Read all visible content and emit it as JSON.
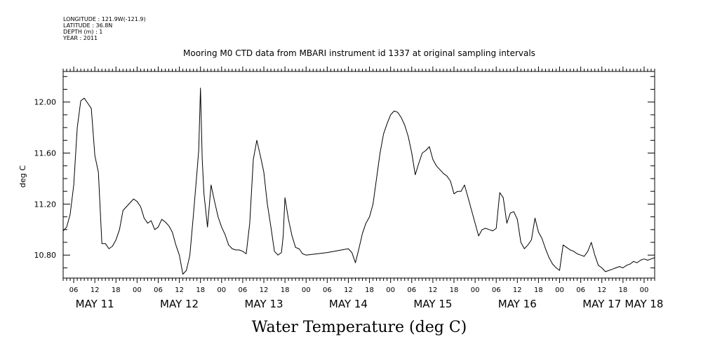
{
  "meta": {
    "longitude": "LONGITUDE : 121.9W(-121.9)",
    "latitude": "LATITUDE : 36.8N",
    "depth": "DEPTH (m) : 1",
    "year": "YEAR : 2011"
  },
  "chart_data": {
    "type": "line",
    "title": "Mooring M0 CTD data from MBARI instrument id 1337 at original sampling intervals",
    "xlabel": "Water Temperature (deg C)",
    "ylabel": "deg C",
    "ylim": [
      10.62,
      12.24
    ],
    "yticks": [
      10.8,
      11.2,
      11.6,
      12.0
    ],
    "ytick_labels": [
      "10.80",
      "11.20",
      "11.60",
      "12.00"
    ],
    "xlim": [
      "2011-05-11T03:00",
      "2011-05-18T03:00"
    ],
    "hour_tick_labels": [
      "06",
      "12",
      "18",
      "00",
      "06",
      "12",
      "18",
      "00",
      "06",
      "12",
      "18",
      "00",
      "06",
      "12",
      "18",
      "00",
      "06",
      "12",
      "18",
      "00",
      "06",
      "12",
      "18",
      "00",
      "06",
      "12",
      "18",
      "00"
    ],
    "day_labels": [
      "MAY 11",
      "MAY 12",
      "MAY 13",
      "MAY 14",
      "MAY 15",
      "MAY 16",
      "MAY 17",
      "MAY 18"
    ],
    "grid": false,
    "series": [
      {
        "values": [
          [
            "2011-05-11T03:00",
            10.99
          ],
          [
            "2011-05-11T04:00",
            11.02
          ],
          [
            "2011-05-11T05:00",
            11.12
          ],
          [
            "2011-05-11T06:00",
            11.35
          ],
          [
            "2011-05-11T07:00",
            11.8
          ],
          [
            "2011-05-11T08:00",
            12.01
          ],
          [
            "2011-05-11T09:00",
            12.03
          ],
          [
            "2011-05-11T10:00",
            11.99
          ],
          [
            "2011-05-11T11:00",
            11.95
          ],
          [
            "2011-05-11T12:00",
            11.58
          ],
          [
            "2011-05-11T13:00",
            11.45
          ],
          [
            "2011-05-11T14:00",
            10.89
          ],
          [
            "2011-05-11T15:00",
            10.89
          ],
          [
            "2011-05-11T16:00",
            10.85
          ],
          [
            "2011-05-11T17:00",
            10.87
          ],
          [
            "2011-05-11T18:00",
            10.92
          ],
          [
            "2011-05-11T19:00",
            11.0
          ],
          [
            "2011-05-11T20:00",
            11.15
          ],
          [
            "2011-05-11T21:00",
            11.18
          ],
          [
            "2011-05-11T22:00",
            11.21
          ],
          [
            "2011-05-11T23:00",
            11.24
          ],
          [
            "2011-05-12T00:00",
            11.22
          ],
          [
            "2011-05-12T01:00",
            11.18
          ],
          [
            "2011-05-12T02:00",
            11.09
          ],
          [
            "2011-05-12T03:00",
            11.05
          ],
          [
            "2011-05-12T04:00",
            11.07
          ],
          [
            "2011-05-12T05:00",
            11.0
          ],
          [
            "2011-05-12T06:00",
            11.02
          ],
          [
            "2011-05-12T07:00",
            11.08
          ],
          [
            "2011-05-12T08:00",
            11.06
          ],
          [
            "2011-05-12T09:00",
            11.03
          ],
          [
            "2011-05-12T10:00",
            10.98
          ],
          [
            "2011-05-12T11:00",
            10.88
          ],
          [
            "2011-05-12T12:00",
            10.8
          ],
          [
            "2011-05-12T13:00",
            10.65
          ],
          [
            "2011-05-12T14:00",
            10.68
          ],
          [
            "2011-05-12T15:00",
            10.8
          ],
          [
            "2011-05-12T16:00",
            11.12
          ],
          [
            "2011-05-12T17:00",
            11.45
          ],
          [
            "2011-05-12T17:30",
            11.62
          ],
          [
            "2011-05-12T18:00",
            12.11
          ],
          [
            "2011-05-12T18:30",
            11.55
          ],
          [
            "2011-05-12T19:00",
            11.28
          ],
          [
            "2011-05-12T20:00",
            11.02
          ],
          [
            "2011-05-12T21:00",
            11.35
          ],
          [
            "2011-05-12T22:00",
            11.22
          ],
          [
            "2011-05-12T23:00",
            11.1
          ],
          [
            "2011-05-13T00:00",
            11.02
          ],
          [
            "2011-05-13T01:00",
            10.96
          ],
          [
            "2011-05-13T02:00",
            10.88
          ],
          [
            "2011-05-13T03:00",
            10.85
          ],
          [
            "2011-05-13T04:00",
            10.84
          ],
          [
            "2011-05-13T05:00",
            10.84
          ],
          [
            "2011-05-13T06:00",
            10.83
          ],
          [
            "2011-05-13T07:00",
            10.81
          ],
          [
            "2011-05-13T08:00",
            11.05
          ],
          [
            "2011-05-13T09:00",
            11.55
          ],
          [
            "2011-05-13T10:00",
            11.7
          ],
          [
            "2011-05-13T11:00",
            11.58
          ],
          [
            "2011-05-13T12:00",
            11.45
          ],
          [
            "2011-05-13T13:00",
            11.2
          ],
          [
            "2011-05-13T14:00",
            11.02
          ],
          [
            "2011-05-13T15:00",
            10.83
          ],
          [
            "2011-05-13T16:00",
            10.8
          ],
          [
            "2011-05-13T17:00",
            10.82
          ],
          [
            "2011-05-13T17:30",
            10.95
          ],
          [
            "2011-05-13T18:00",
            11.25
          ],
          [
            "2011-05-13T19:00",
            11.08
          ],
          [
            "2011-05-13T20:00",
            10.95
          ],
          [
            "2011-05-13T21:00",
            10.86
          ],
          [
            "2011-05-13T22:00",
            10.85
          ],
          [
            "2011-05-13T23:00",
            10.81
          ],
          [
            "2011-05-14T00:00",
            10.8
          ],
          [
            "2011-05-14T06:00",
            10.82
          ],
          [
            "2011-05-14T12:00",
            10.85
          ],
          [
            "2011-05-14T13:00",
            10.82
          ],
          [
            "2011-05-14T14:00",
            10.74
          ],
          [
            "2011-05-14T15:00",
            10.85
          ],
          [
            "2011-05-14T16:00",
            10.97
          ],
          [
            "2011-05-14T17:00",
            11.05
          ],
          [
            "2011-05-14T18:00",
            11.1
          ],
          [
            "2011-05-14T19:00",
            11.2
          ],
          [
            "2011-05-14T20:00",
            11.4
          ],
          [
            "2011-05-14T21:00",
            11.6
          ],
          [
            "2011-05-14T22:00",
            11.75
          ],
          [
            "2011-05-14T23:00",
            11.83
          ],
          [
            "2011-05-15T00:00",
            11.9
          ],
          [
            "2011-05-15T01:00",
            11.93
          ],
          [
            "2011-05-15T02:00",
            11.92
          ],
          [
            "2011-05-15T03:00",
            11.88
          ],
          [
            "2011-05-15T04:00",
            11.82
          ],
          [
            "2011-05-15T05:00",
            11.73
          ],
          [
            "2011-05-15T06:00",
            11.6
          ],
          [
            "2011-05-15T07:00",
            11.43
          ],
          [
            "2011-05-15T08:00",
            11.52
          ],
          [
            "2011-05-15T09:00",
            11.6
          ],
          [
            "2011-05-15T10:00",
            11.62
          ],
          [
            "2011-05-15T11:00",
            11.65
          ],
          [
            "2011-05-15T12:00",
            11.55
          ],
          [
            "2011-05-15T13:00",
            11.5
          ],
          [
            "2011-05-15T14:00",
            11.47
          ],
          [
            "2011-05-15T15:00",
            11.44
          ],
          [
            "2011-05-15T16:00",
            11.42
          ],
          [
            "2011-05-15T17:00",
            11.38
          ],
          [
            "2011-05-15T18:00",
            11.28
          ],
          [
            "2011-05-15T19:00",
            11.3
          ],
          [
            "2011-05-15T20:00",
            11.3
          ],
          [
            "2011-05-15T21:00",
            11.35
          ],
          [
            "2011-05-15T22:00",
            11.25
          ],
          [
            "2011-05-15T23:00",
            11.15
          ],
          [
            "2011-05-16T00:00",
            11.05
          ],
          [
            "2011-05-16T01:00",
            10.95
          ],
          [
            "2011-05-16T02:00",
            11.0
          ],
          [
            "2011-05-16T03:00",
            11.01
          ],
          [
            "2011-05-16T04:00",
            11.0
          ],
          [
            "2011-05-16T05:00",
            10.99
          ],
          [
            "2011-05-16T06:00",
            11.01
          ],
          [
            "2011-05-16T07:00",
            11.29
          ],
          [
            "2011-05-16T08:00",
            11.25
          ],
          [
            "2011-05-16T09:00",
            11.05
          ],
          [
            "2011-05-16T10:00",
            11.13
          ],
          [
            "2011-05-16T11:00",
            11.14
          ],
          [
            "2011-05-16T12:00",
            11.08
          ],
          [
            "2011-05-16T13:00",
            10.9
          ],
          [
            "2011-05-16T14:00",
            10.85
          ],
          [
            "2011-05-16T15:00",
            10.88
          ],
          [
            "2011-05-16T16:00",
            10.92
          ],
          [
            "2011-05-16T17:00",
            11.09
          ],
          [
            "2011-05-16T18:00",
            10.98
          ],
          [
            "2011-05-16T19:00",
            10.93
          ],
          [
            "2011-05-16T20:00",
            10.85
          ],
          [
            "2011-05-16T21:00",
            10.78
          ],
          [
            "2011-05-16T22:00",
            10.73
          ],
          [
            "2011-05-16T23:00",
            10.7
          ],
          [
            "2011-05-17T00:00",
            10.68
          ],
          [
            "2011-05-17T01:00",
            10.88
          ],
          [
            "2011-05-17T02:00",
            10.86
          ],
          [
            "2011-05-17T03:00",
            10.84
          ],
          [
            "2011-05-17T04:00",
            10.83
          ],
          [
            "2011-05-17T05:00",
            10.81
          ],
          [
            "2011-05-17T06:00",
            10.8
          ],
          [
            "2011-05-17T07:00",
            10.79
          ],
          [
            "2011-05-17T08:00",
            10.83
          ],
          [
            "2011-05-17T09:00",
            10.9
          ],
          [
            "2011-05-17T10:00",
            10.8
          ],
          [
            "2011-05-17T11:00",
            10.72
          ],
          [
            "2011-05-17T12:00",
            10.7
          ],
          [
            "2011-05-17T13:00",
            10.67
          ],
          [
            "2011-05-17T14:00",
            10.68
          ],
          [
            "2011-05-17T15:00",
            10.69
          ],
          [
            "2011-05-17T16:00",
            10.7
          ],
          [
            "2011-05-17T17:00",
            10.71
          ],
          [
            "2011-05-17T18:00",
            10.7
          ],
          [
            "2011-05-17T19:00",
            10.72
          ],
          [
            "2011-05-17T20:00",
            10.73
          ],
          [
            "2011-05-17T21:00",
            10.75
          ],
          [
            "2011-05-17T22:00",
            10.74
          ],
          [
            "2011-05-17T23:00",
            10.76
          ],
          [
            "2011-05-18T00:00",
            10.77
          ],
          [
            "2011-05-18T01:00",
            10.76
          ],
          [
            "2011-05-18T02:00",
            10.77
          ],
          [
            "2011-05-18T03:00",
            10.78
          ]
        ]
      }
    ]
  }
}
